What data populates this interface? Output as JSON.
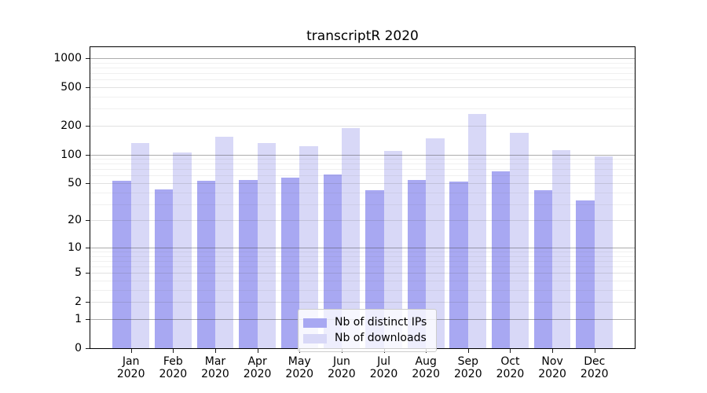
{
  "title": "transcriptR 2020",
  "chart_data": {
    "type": "bar",
    "title": "transcriptR 2020",
    "categories": [
      "Jan",
      "Feb",
      "Mar",
      "Apr",
      "May",
      "Jun",
      "Jul",
      "Aug",
      "Sep",
      "Oct",
      "Nov",
      "Dec"
    ],
    "category_year": "2020",
    "series": [
      {
        "name": "Nb of distinct IPs",
        "color": "#a8a8f2",
        "values": [
          53,
          43,
          53,
          54,
          57,
          62,
          42,
          54,
          52,
          66,
          42,
          33
        ]
      },
      {
        "name": "Nb of downloads",
        "color": "#d8d8f7",
        "values": [
          132,
          104,
          154,
          132,
          121,
          187,
          108,
          148,
          264,
          168,
          111,
          95
        ]
      }
    ],
    "xlabel": "",
    "ylabel": "",
    "y_scale": "log(value+1)",
    "y_ticks": [
      0,
      1,
      2,
      5,
      10,
      20,
      50,
      100,
      200,
      500,
      1000
    ],
    "y_major_gridlines": [
      1,
      10,
      100,
      1000
    ],
    "ylim": [
      0,
      1300
    ],
    "grid": true,
    "legend_position": "lower center"
  }
}
